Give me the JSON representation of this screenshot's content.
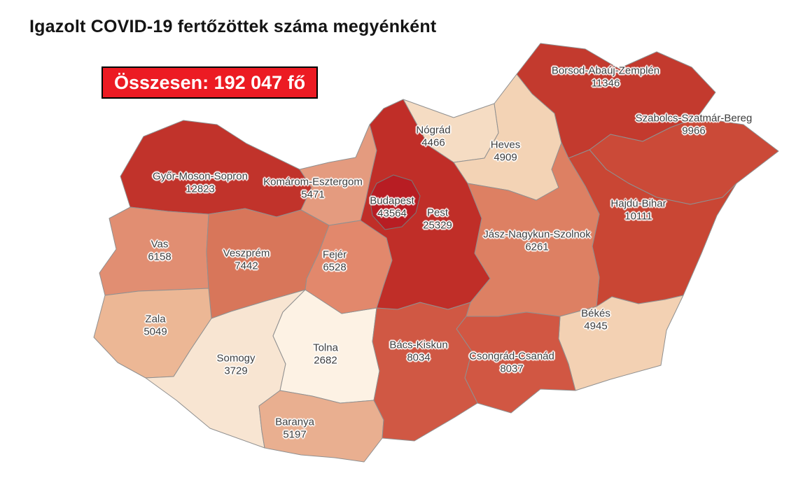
{
  "header": {
    "title": "Igazolt COVID-19 fertőzöttek száma megyénként"
  },
  "total_badge": {
    "text": "Összesen: 192 047 fő",
    "bg_color": "#ec1b23",
    "border_color": "#000000",
    "text_color": "#ffffff"
  },
  "map": {
    "border_color": "#909090",
    "budapest_border_color": "#7a7a7a",
    "label_text_color": "#3d3d3d",
    "label_halo_color": "#ffffff"
  },
  "chart_data": {
    "type": "heatmap",
    "subtype": "choropleth-map",
    "title": "Igazolt COVID-19 fertőzöttek száma megyénként",
    "total_label": "Összesen: 192 047 fő",
    "total_value": 192047,
    "unit": "fő",
    "legend": "none",
    "regions": [
      {
        "id": "gyor",
        "name": "Győr-Moson-Sopron",
        "value": 12823,
        "color": "#c1332b"
      },
      {
        "id": "komarom",
        "name": "Komárom-Esztergom",
        "value": 5471,
        "color": "#e49b7f"
      },
      {
        "id": "vas",
        "name": "Vas",
        "value": 6158,
        "color": "#e18e72"
      },
      {
        "id": "veszprem",
        "name": "Veszprém",
        "value": 7442,
        "color": "#d8765a"
      },
      {
        "id": "zala",
        "name": "Zala",
        "value": 5049,
        "color": "#ecb795"
      },
      {
        "id": "somogy",
        "name": "Somogy",
        "value": 3729,
        "color": "#f8e5d2"
      },
      {
        "id": "tolna",
        "name": "Tolna",
        "value": 2682,
        "color": "#fdf2e4"
      },
      {
        "id": "baranya",
        "name": "Baranya",
        "value": 5197,
        "color": "#e9af90"
      },
      {
        "id": "fejer",
        "name": "Fejér",
        "value": 6528,
        "color": "#e2886c"
      },
      {
        "id": "nograd",
        "name": "Nógrád",
        "value": 4466,
        "color": "#f5dcc3"
      },
      {
        "id": "heves",
        "name": "Heves",
        "value": 4909,
        "color": "#f3d3b5"
      },
      {
        "id": "borsod",
        "name": "Borsod-Abaúj-Zemplén",
        "value": 11346,
        "color": "#c33a2e"
      },
      {
        "id": "szabolcs",
        "name": "Szabolcs-Szatmár-Bereg",
        "value": 9966,
        "color": "#cb4a38"
      },
      {
        "id": "hajdu",
        "name": "Hajdú-Bihar",
        "value": 10111,
        "color": "#c94634"
      },
      {
        "id": "jasz",
        "name": "Jász-Nagykun-Szolnok",
        "value": 6261,
        "color": "#dd8063"
      },
      {
        "id": "bekes",
        "name": "Békés",
        "value": 4945,
        "color": "#f3d1b3"
      },
      {
        "id": "csongrad",
        "name": "Csongrád-Csanád",
        "value": 8037,
        "color": "#d15743"
      },
      {
        "id": "bacs",
        "name": "Bács-Kiskun",
        "value": 8034,
        "color": "#d05844"
      },
      {
        "id": "pest",
        "name": "Pest",
        "value": 25329,
        "color": "#c02e28"
      },
      {
        "id": "budapest",
        "name": "Budapest",
        "value": 43564,
        "color": "#b81d23"
      }
    ]
  }
}
